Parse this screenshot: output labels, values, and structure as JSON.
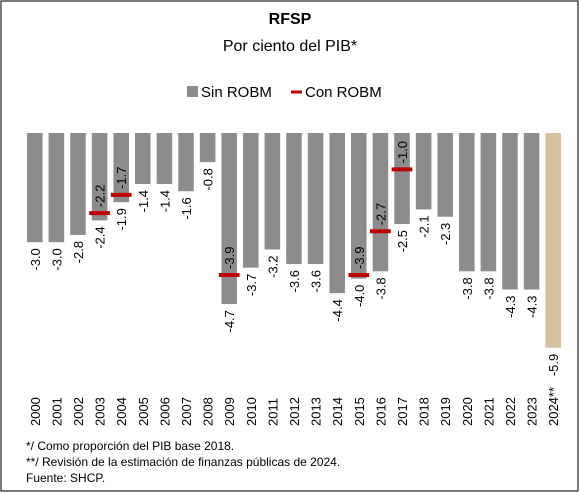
{
  "chart_data": {
    "type": "bar",
    "title": "RFSP",
    "subtitle": "Por ciento del PIB*",
    "categories": [
      "2000",
      "2001",
      "2002",
      "2003",
      "2004",
      "2005",
      "2006",
      "2007",
      "2008",
      "2009",
      "2010",
      "2011",
      "2012",
      "2013",
      "2014",
      "2015",
      "2016",
      "2017",
      "2018",
      "2019",
      "2020",
      "2021",
      "2022",
      "2023",
      "2024**"
    ],
    "series": [
      {
        "name": "Sin ROBM",
        "color": "#8c8c8c",
        "colors": [
          "#8c8c8c",
          "#8c8c8c",
          "#8c8c8c",
          "#8c8c8c",
          "#8c8c8c",
          "#8c8c8c",
          "#8c8c8c",
          "#8c8c8c",
          "#8c8c8c",
          "#8c8c8c",
          "#8c8c8c",
          "#8c8c8c",
          "#8c8c8c",
          "#8c8c8c",
          "#8c8c8c",
          "#8c8c8c",
          "#8c8c8c",
          "#8c8c8c",
          "#8c8c8c",
          "#8c8c8c",
          "#8c8c8c",
          "#8c8c8c",
          "#8c8c8c",
          "#8c8c8c",
          "#d5c29d"
        ],
        "values": [
          -3.0,
          -3.0,
          -2.8,
          -2.4,
          -1.9,
          -1.4,
          -1.4,
          -1.6,
          -0.8,
          -4.7,
          -3.7,
          -3.2,
          -3.6,
          -3.6,
          -4.4,
          -4.0,
          -3.8,
          -2.5,
          -2.1,
          -2.3,
          -3.8,
          -3.8,
          -4.3,
          -4.3,
          -5.9
        ],
        "value_labels": [
          "-3.0",
          "-3.0",
          "-2.8",
          "-2.4",
          "-1.9",
          "-1.4",
          "-1.4",
          "-1.6",
          "-0.8",
          "-4.7",
          "-3.7",
          "-3.2",
          "-3.6",
          "-3.6",
          "-4.4",
          "-4.0",
          "-3.8",
          "-2.5",
          "-2.1",
          "-2.3",
          "-3.8",
          "-3.8",
          "-4.3",
          "-4.3",
          "-5.9"
        ]
      },
      {
        "name": "Con ROBM",
        "color": "#c00000",
        "values": [
          null,
          null,
          null,
          -2.2,
          -1.7,
          null,
          null,
          null,
          null,
          -3.9,
          null,
          null,
          null,
          null,
          null,
          -3.9,
          -2.7,
          -1.0,
          null,
          null,
          null,
          null,
          null,
          null,
          null
        ],
        "value_labels": [
          null,
          null,
          null,
          "-2.2",
          "-1.7",
          null,
          null,
          null,
          null,
          "-3.9",
          null,
          null,
          null,
          null,
          null,
          "-3.9",
          "-2.7",
          "-1.0",
          null,
          null,
          null,
          null,
          null,
          null,
          null
        ]
      }
    ],
    "notes": [
      "*/ Como proporción del PIB base 2018.",
      "**/ Revisión de la estimación de finanzas públicas de 2024.",
      "Fuente: SHCP."
    ]
  }
}
